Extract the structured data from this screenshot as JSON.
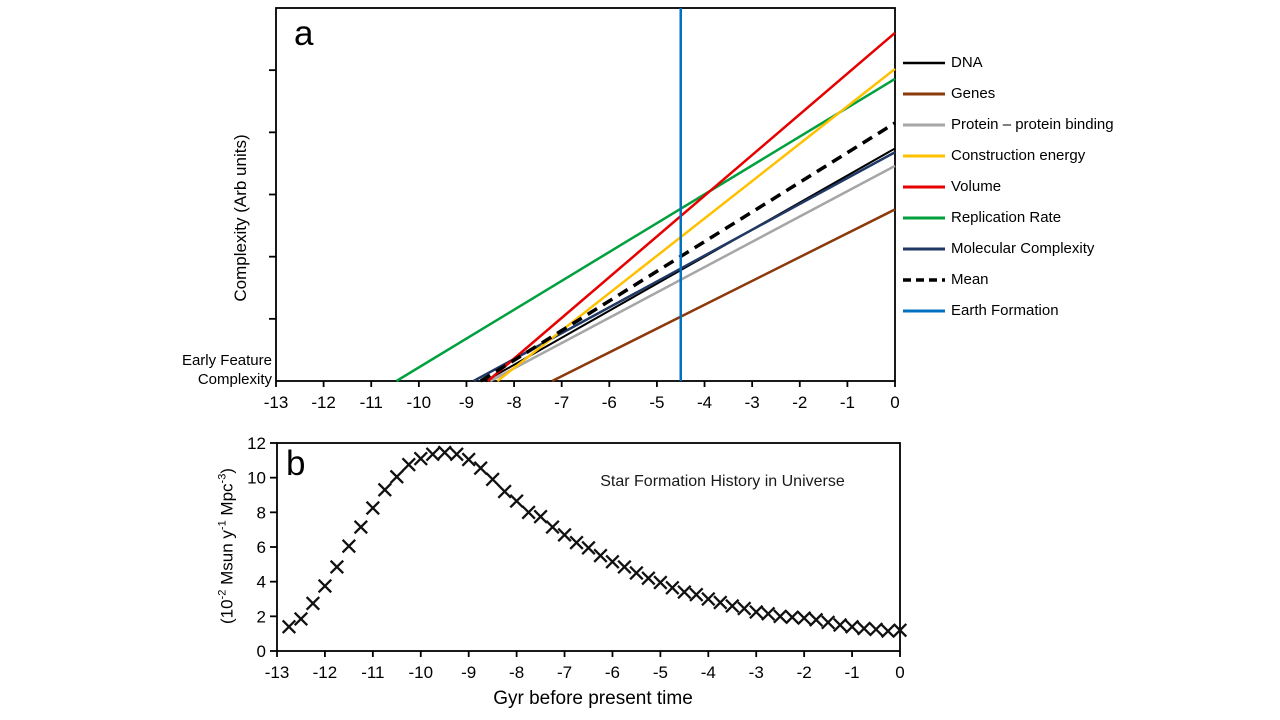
{
  "chart_data": [
    {
      "panel": "a",
      "type": "line",
      "ylabel": "Complexity (Arb units)",
      "origin_label_lines": [
        "Early Feature",
        "Complexity"
      ],
      "xlim": [
        -13,
        0
      ],
      "ylim": [
        0,
        6
      ],
      "x_tick_values": [
        -13,
        -12,
        -11,
        -10,
        -9,
        -8,
        -7,
        -6,
        -5,
        -4,
        -3,
        -2,
        -1,
        0
      ],
      "x_tick_labels": [
        "-13",
        "-12",
        "-11",
        "-10",
        "-9",
        "-8",
        "-7",
        "-6",
        "-5",
        "-4",
        "-3",
        "-2",
        "-1",
        "0"
      ],
      "y_tick_values_unlabeled": [
        1,
        2,
        3,
        4,
        5
      ],
      "grid": false,
      "legend_position": "right",
      "series": [
        {
          "name": "DNA",
          "color": "#000000",
          "width": 2,
          "dash": null,
          "z": 3,
          "points": [
            [
              -8.6,
              0
            ],
            [
              0,
              3.74
            ]
          ]
        },
        {
          "name": "Genes",
          "color": "#8B3A0B",
          "width": 2.5,
          "dash": null,
          "z": 2,
          "points": [
            [
              -7.2,
              0
            ],
            [
              0,
              2.76
            ]
          ]
        },
        {
          "name": "Protein – protein binding",
          "color": "#A6A6A6",
          "width": 2.5,
          "dash": null,
          "z": 1,
          "points": [
            [
              -8.5,
              0
            ],
            [
              0,
              3.46
            ]
          ]
        },
        {
          "name": "Construction energy",
          "color": "#FFC000",
          "width": 2.5,
          "dash": null,
          "z": 6,
          "points": [
            [
              -8.35,
              0
            ],
            [
              0,
              5.02
            ]
          ]
        },
        {
          "name": "Volume",
          "color": "#E60000",
          "width": 2.5,
          "dash": null,
          "z": 7,
          "points": [
            [
              -8.55,
              0
            ],
            [
              0,
              5.6
            ]
          ]
        },
        {
          "name": "Replication Rate",
          "color": "#00A03E",
          "width": 2.5,
          "dash": null,
          "z": 5,
          "points": [
            [
              -10.47,
              0
            ],
            [
              0,
              4.86
            ]
          ]
        },
        {
          "name": "Molecular Complexity",
          "color": "#1F3864",
          "width": 2.5,
          "dash": null,
          "z": 4,
          "points": [
            [
              -8.85,
              0
            ],
            [
              0,
              3.68
            ]
          ]
        },
        {
          "name": "Mean",
          "color": "#000000",
          "width": 3.5,
          "dash": "11,7",
          "z": 8,
          "points": [
            [
              -8.7,
              0
            ],
            [
              0,
              4.15
            ]
          ]
        },
        {
          "name": "Earth Formation",
          "color": "#0070C0",
          "width": 2.5,
          "dash": null,
          "z": 9,
          "points": [
            [
              -4.5,
              0
            ],
            [
              -4.5,
              6
            ]
          ]
        }
      ]
    },
    {
      "panel": "b",
      "type": "scatter",
      "marker": "x",
      "annotation": "Star Formation History in Universe",
      "xlabel": "Gyr before present time",
      "ylabel_plain": "(10^-2 Msun y^-1 Mpc^-3)",
      "ylabel_segments": [
        {
          "text": "(10"
        },
        {
          "sup": "-2"
        },
        {
          "text": " Msun y"
        },
        {
          "sup": "-1"
        },
        {
          "text": " Mpc"
        },
        {
          "sup": "-3"
        },
        {
          "text": ")"
        }
      ],
      "xlim": [
        -13,
        0
      ],
      "ylim": [
        0,
        12
      ],
      "x_tick_values": [
        -13,
        -12,
        -11,
        -10,
        -9,
        -8,
        -7,
        -6,
        -5,
        -4,
        -3,
        -2,
        -1,
        0
      ],
      "x_tick_labels": [
        "-13",
        "-12",
        "-11",
        "-10",
        "-9",
        "-8",
        "-7",
        "-6",
        "-5",
        "-4",
        "-3",
        "-2",
        "-1",
        "0"
      ],
      "y_tick_values": [
        0,
        2,
        4,
        6,
        8,
        10,
        12
      ],
      "y_tick_labels": [
        "0",
        "2",
        "4",
        "6",
        "8",
        "10",
        "12"
      ],
      "grid": false,
      "marker_color": "#111111",
      "points": [
        [
          -12.75,
          1.4
        ],
        [
          -12.5,
          1.85
        ],
        [
          -12.25,
          2.75
        ],
        [
          -12,
          3.75
        ],
        [
          -11.75,
          4.85
        ],
        [
          -11.5,
          6.05
        ],
        [
          -11.25,
          7.15
        ],
        [
          -11,
          8.25
        ],
        [
          -10.75,
          9.3
        ],
        [
          -10.5,
          10.05
        ],
        [
          -10.25,
          10.75
        ],
        [
          -10,
          11.1
        ],
        [
          -9.75,
          11.35
        ],
        [
          -9.5,
          11.45
        ],
        [
          -9.25,
          11.35
        ],
        [
          -9,
          11.05
        ],
        [
          -8.75,
          10.55
        ],
        [
          -8.5,
          9.9
        ],
        [
          -8.25,
          9.2
        ],
        [
          -8,
          8.65
        ],
        [
          -7.75,
          8.0
        ],
        [
          -7.5,
          7.75
        ],
        [
          -7.25,
          7.15
        ],
        [
          -7,
          6.7
        ],
        [
          -6.75,
          6.25
        ],
        [
          -6.5,
          5.95
        ],
        [
          -6.25,
          5.5
        ],
        [
          -6,
          5.15
        ],
        [
          -5.75,
          4.85
        ],
        [
          -5.5,
          4.5
        ],
        [
          -5.25,
          4.2
        ],
        [
          -5,
          3.95
        ],
        [
          -4.75,
          3.65
        ],
        [
          -4.5,
          3.4
        ],
        [
          -4.25,
          3.25
        ],
        [
          -4,
          3.0
        ],
        [
          -3.75,
          2.8
        ],
        [
          -3.5,
          2.6
        ],
        [
          -3.25,
          2.45
        ],
        [
          -3,
          2.25
        ],
        [
          -2.75,
          2.15
        ],
        [
          -2.5,
          2.0
        ],
        [
          -2.25,
          1.95
        ],
        [
          -2,
          1.9
        ],
        [
          -1.75,
          1.8
        ],
        [
          -1.5,
          1.65
        ],
        [
          -1.25,
          1.5
        ],
        [
          -1,
          1.4
        ],
        [
          -0.75,
          1.3
        ],
        [
          -0.5,
          1.25
        ],
        [
          -0.25,
          1.15
        ],
        [
          0,
          1.2
        ]
      ]
    }
  ]
}
